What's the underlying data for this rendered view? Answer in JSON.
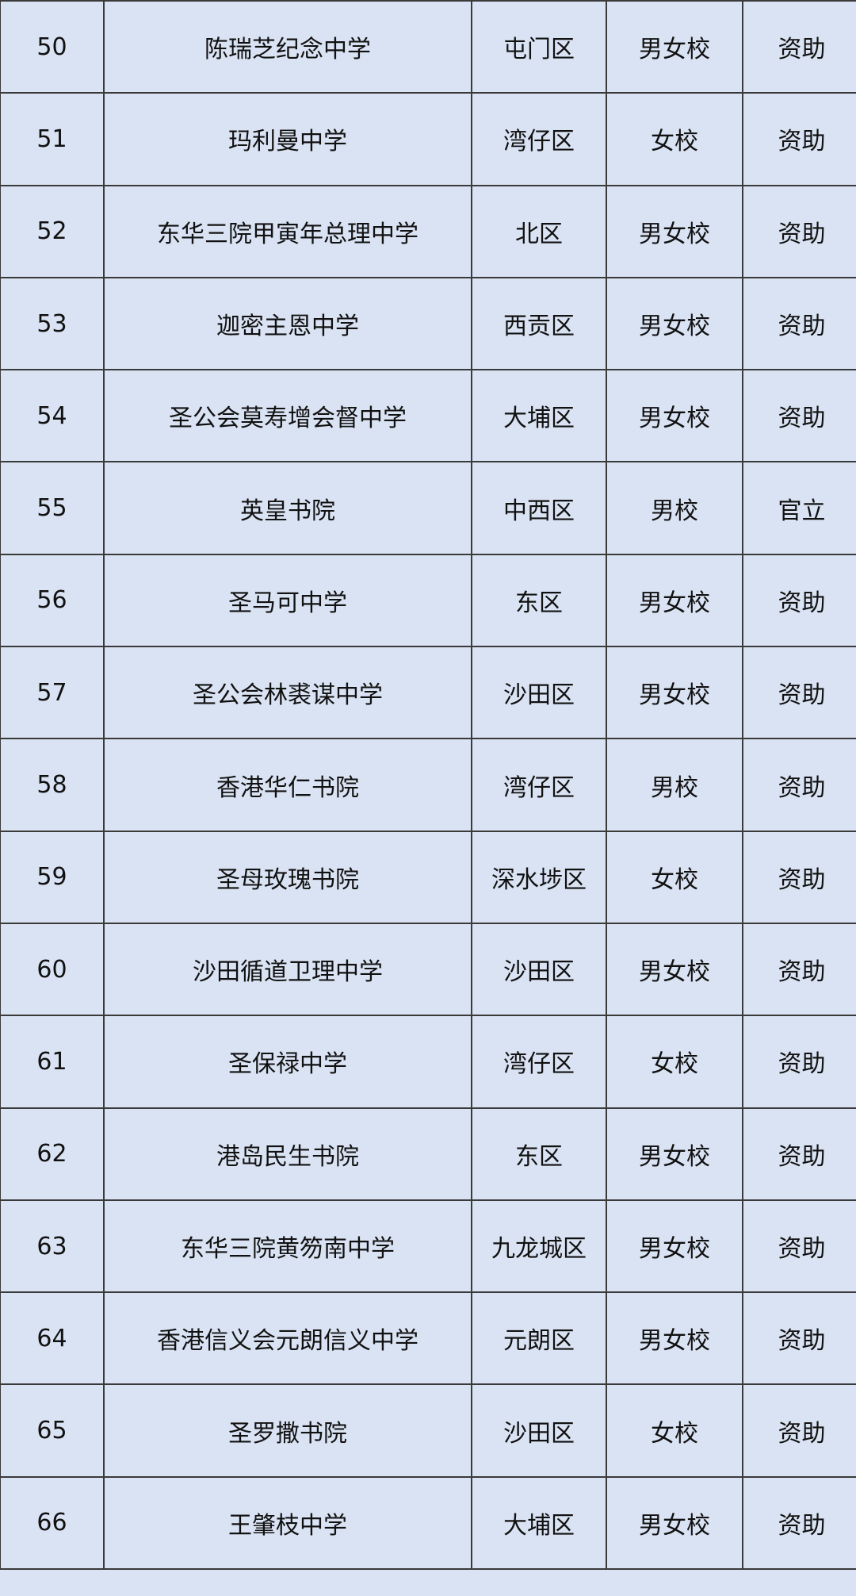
{
  "rows": [
    [
      "50",
      "陈瑞芝纪念中学",
      "屯门区",
      "男女校",
      "资助"
    ],
    [
      "51",
      "玛利曼中学",
      "湾仔区",
      "女校",
      "资助"
    ],
    [
      "52",
      "东华三院甲寅年总理中学",
      "北区",
      "男女校",
      "资助"
    ],
    [
      "53",
      "迦密主恩中学",
      "西贡区",
      "男女校",
      "资助"
    ],
    [
      "54",
      "圣公会莫寿增会督中学",
      "大埔区",
      "男女校",
      "资助"
    ],
    [
      "55",
      "英皇书院",
      "中西区",
      "男校",
      "官立"
    ],
    [
      "56",
      "圣马可中学",
      "东区",
      "男女校",
      "资助"
    ],
    [
      "57",
      "圣公会林裘谋中学",
      "沙田区",
      "男女校",
      "资助"
    ],
    [
      "58",
      "香港华仁书院",
      "湾仔区",
      "男校",
      "资助"
    ],
    [
      "59",
      "圣母玫瑰书院",
      "深水埗区",
      "女校",
      "资助"
    ],
    [
      "60",
      "沙田循道卫理中学",
      "沙田区",
      "男女校",
      "资助"
    ],
    [
      "61",
      "圣保禄中学",
      "湾仔区",
      "女校",
      "资助"
    ],
    [
      "62",
      "港岛民生书院",
      "东区",
      "男女校",
      "资助"
    ],
    [
      "63",
      "东华三院黄笏南中学",
      "九龙城区",
      "男女校",
      "资助"
    ],
    [
      "64",
      "香港信义会元朗信义中学",
      "元朗区",
      "男女校",
      "资助"
    ],
    [
      "65",
      "圣罗撒书院",
      "沙田区",
      "女校",
      "资助"
    ],
    [
      "66",
      "王肇枝中学",
      "大埔区",
      "男女校",
      "资助"
    ]
  ]
}
